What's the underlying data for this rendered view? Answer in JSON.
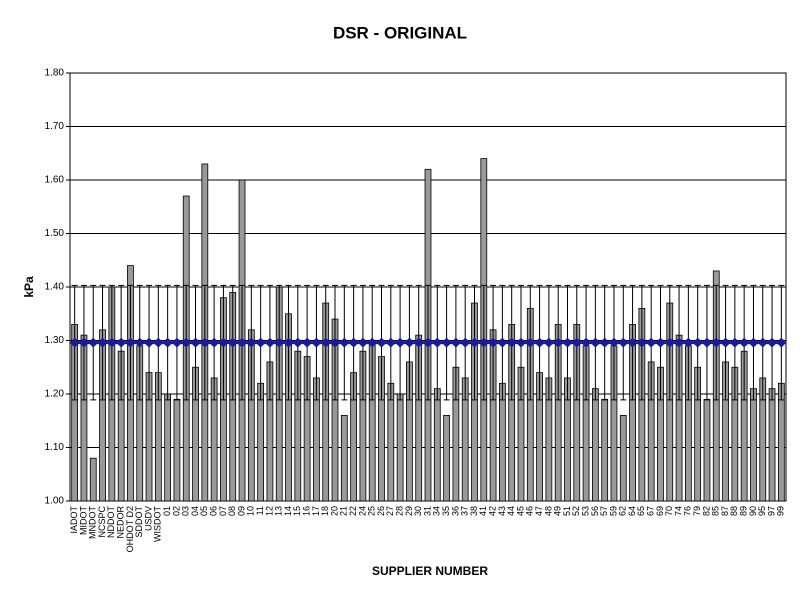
{
  "chart_data": {
    "type": "bar",
    "title": "DSR - ORIGINAL",
    "x_label": "SUPPLIER NUMBER",
    "y_label": "kPa",
    "categories": [
      "IADOT",
      "MIDOT",
      "MNDOT",
      "NCSPC",
      "NDDOT",
      "NEDOR",
      "OHDOT D2",
      "SDDOT",
      "USDV",
      "WISDOT",
      "01",
      "02",
      "03",
      "04",
      "05",
      "06",
      "07",
      "08",
      "09",
      "10",
      "11",
      "12",
      "13",
      "14",
      "15",
      "16",
      "17",
      "18",
      "20",
      "21",
      "22",
      "24",
      "25",
      "26",
      "27",
      "28",
      "29",
      "30",
      "31",
      "34",
      "35",
      "36",
      "37",
      "38",
      "41",
      "42",
      "43",
      "44",
      "45",
      "46",
      "47",
      "48",
      "49",
      "51",
      "52",
      "53",
      "56",
      "57",
      "59",
      "62",
      "64",
      "65",
      "67",
      "69",
      "70",
      "74",
      "76",
      "79",
      "82",
      "85",
      "87",
      "88",
      "89",
      "90",
      "95",
      "97",
      "99"
    ],
    "series": [
      {
        "type": "bar",
        "color": "#999999",
        "values": [
          1.33,
          1.31,
          1.08,
          1.32,
          1.4,
          1.28,
          1.44,
          1.29,
          1.24,
          1.24,
          1.2,
          1.19,
          1.57,
          1.25,
          1.63,
          1.23,
          1.38,
          1.39,
          1.6,
          1.32,
          1.22,
          1.26,
          1.4,
          1.35,
          1.28,
          1.27,
          1.23,
          1.37,
          1.34,
          1.16,
          1.24,
          1.28,
          1.3,
          1.27,
          1.22,
          1.2,
          1.26,
          1.31,
          1.62,
          1.21,
          1.16,
          1.25,
          1.23,
          1.37,
          1.64,
          1.32,
          1.22,
          1.33,
          1.25,
          1.36,
          1.24,
          1.23,
          1.33,
          1.23,
          1.33,
          1.29,
          1.21,
          1.19,
          1.29,
          1.16,
          1.33,
          1.36,
          1.26,
          1.25,
          1.37,
          1.31,
          1.29,
          1.25,
          1.19,
          1.43,
          1.26,
          1.25,
          1.28,
          1.21,
          1.23,
          1.21,
          1.22
        ]
      },
      {
        "type": "line",
        "color": "#1a1aa0",
        "values": [
          1.296,
          1.296,
          1.296,
          1.296,
          1.296,
          1.296,
          1.296,
          1.296,
          1.296,
          1.296,
          1.296,
          1.296,
          1.296,
          1.296,
          1.296,
          1.296,
          1.296,
          1.296,
          1.296,
          1.296,
          1.296,
          1.296,
          1.296,
          1.296,
          1.296,
          1.296,
          1.296,
          1.296,
          1.296,
          1.296,
          1.296,
          1.296,
          1.296,
          1.296,
          1.296,
          1.296,
          1.296,
          1.296,
          1.296,
          1.296,
          1.296,
          1.296,
          1.296,
          1.296,
          1.296,
          1.296,
          1.296,
          1.296,
          1.296,
          1.296,
          1.296,
          1.296,
          1.296,
          1.296,
          1.296,
          1.296,
          1.296,
          1.296,
          1.296,
          1.296,
          1.296,
          1.296,
          1.296,
          1.296,
          1.296,
          1.296,
          1.296,
          1.296,
          1.296,
          1.296,
          1.296,
          1.296,
          1.296,
          1.296,
          1.296,
          1.296,
          1.296
        ],
        "errors": [
          0.107,
          0.107,
          0.107,
          0.107,
          0.107,
          0.107,
          0.107,
          0.107,
          0.107,
          0.107,
          0.107,
          0.107,
          0.107,
          0.107,
          0.107,
          0.107,
          0.107,
          0.107,
          0.107,
          0.107,
          0.107,
          0.107,
          0.107,
          0.107,
          0.107,
          0.107,
          0.107,
          0.107,
          0.107,
          0.107,
          0.107,
          0.107,
          0.107,
          0.107,
          0.107,
          0.107,
          0.107,
          0.107,
          0.107,
          0.107,
          0.107,
          0.107,
          0.107,
          0.107,
          0.107,
          0.107,
          0.107,
          0.107,
          0.107,
          0.107,
          0.107,
          0.107,
          0.107,
          0.107,
          0.107,
          0.107,
          0.107,
          0.107,
          0.107,
          0.107,
          0.107,
          0.107,
          0.107,
          0.107,
          0.107,
          0.107,
          0.107,
          0.107,
          0.107,
          0.107,
          0.107,
          0.107,
          0.107,
          0.107,
          0.107,
          0.107,
          0.107
        ]
      }
    ],
    "ylim": [
      1.0,
      1.8
    ],
    "yticks": [
      {
        "value": 1.0,
        "label": "1.00"
      },
      {
        "value": 1.1,
        "label": "1.10"
      },
      {
        "value": 1.2,
        "label": "1.20"
      },
      {
        "value": 1.3,
        "label": "1.30"
      },
      {
        "value": 1.4,
        "label": "1.40"
      },
      {
        "value": 1.5,
        "label": "1.50"
      },
      {
        "value": 1.6,
        "label": "1.60"
      },
      {
        "value": 1.7,
        "label": "1.70"
      },
      {
        "value": 1.8,
        "label": "1.80"
      }
    ],
    "grid": true
  }
}
